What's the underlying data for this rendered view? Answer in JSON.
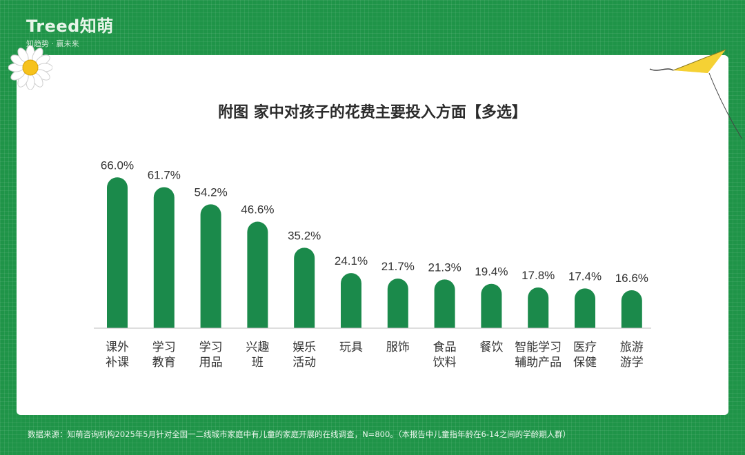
{
  "brand": {
    "name": "Treed知萌",
    "tagline": "知趋势 · 赢未来"
  },
  "chart_data": {
    "type": "bar",
    "title": "附图  家中对孩子的花费主要投入方面【多选】",
    "categories": [
      [
        "课外",
        "补课"
      ],
      [
        "学习",
        "教育"
      ],
      [
        "学习",
        "用品"
      ],
      [
        "兴趣",
        "班"
      ],
      [
        "娱乐",
        "活动"
      ],
      [
        "玩具"
      ],
      [
        "服饰"
      ],
      [
        "食品",
        "饮料"
      ],
      [
        "餐饮"
      ],
      [
        "智能学习",
        "辅助产品"
      ],
      [
        "医疗",
        "保健"
      ],
      [
        "旅游",
        "游学"
      ]
    ],
    "values": [
      66.0,
      61.7,
      54.2,
      46.6,
      35.2,
      24.1,
      21.7,
      21.3,
      19.4,
      17.8,
      17.4,
      16.6
    ],
    "value_labels": [
      "66.0%",
      "61.7%",
      "54.2%",
      "46.6%",
      "35.2%",
      "24.1%",
      "21.7%",
      "21.3%",
      "19.4%",
      "17.8%",
      "17.4%",
      "16.6%"
    ],
    "ylim": [
      0,
      70
    ],
    "grid": false,
    "bar_color": "#1b8a4b"
  },
  "footer": {
    "source": "数据来源：知萌咨询机构2025年5月针对全国一二线城市家庭中有儿童的家庭开展的在线调查，N=800。（本报告中儿童指年龄在6-14之间的学龄期人群）"
  }
}
